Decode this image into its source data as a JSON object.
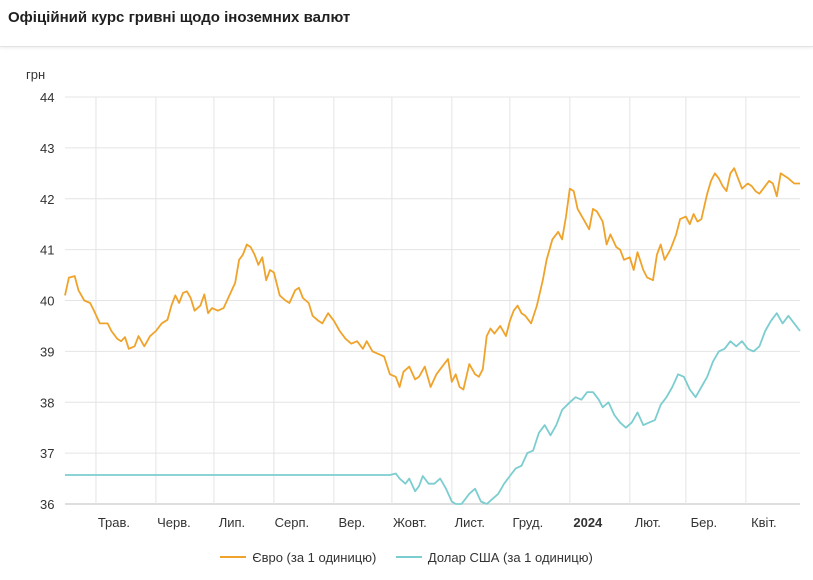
{
  "header": {
    "title": "Офіційний курс гривні щодо іноземних валют"
  },
  "chart_data": {
    "type": "line",
    "ylabel": "грн",
    "ylim": [
      36,
      44
    ],
    "yticks": [
      36,
      37,
      38,
      39,
      40,
      41,
      42,
      43,
      44
    ],
    "xlim": [
      "2023-04-15",
      "2024-04-29"
    ],
    "xticks": [
      {
        "label": "Трав.",
        "date": "2023-05-01",
        "bold": false
      },
      {
        "label": "Черв.",
        "date": "2023-06-01",
        "bold": false
      },
      {
        "label": "Лип.",
        "date": "2023-07-01",
        "bold": false
      },
      {
        "label": "Серп.",
        "date": "2023-08-01",
        "bold": false
      },
      {
        "label": "Вер.",
        "date": "2023-09-01",
        "bold": false
      },
      {
        "label": "Жовт.",
        "date": "2023-10-01",
        "bold": false
      },
      {
        "label": "Лист.",
        "date": "2023-11-01",
        "bold": false
      },
      {
        "label": "Груд.",
        "date": "2023-12-01",
        "bold": false
      },
      {
        "label": "2024",
        "date": "2024-01-01",
        "bold": true
      },
      {
        "label": "Лют.",
        "date": "2024-02-01",
        "bold": false
      },
      {
        "label": "Бер.",
        "date": "2024-03-01",
        "bold": false
      },
      {
        "label": "Квіт.",
        "date": "2024-04-01",
        "bold": false
      }
    ],
    "grid": true,
    "legend_position": "bottom",
    "series": [
      {
        "name": "Євро (за 1 одиницю)",
        "color": "#f0a32a",
        "points": [
          [
            "2023-04-15",
            40.1
          ],
          [
            "2023-04-17",
            40.45
          ],
          [
            "2023-04-20",
            40.48
          ],
          [
            "2023-04-22",
            40.2
          ],
          [
            "2023-04-25",
            40.0
          ],
          [
            "2023-04-28",
            39.95
          ],
          [
            "2023-04-30",
            39.8
          ],
          [
            "2023-05-03",
            39.55
          ],
          [
            "2023-05-07",
            39.55
          ],
          [
            "2023-05-09",
            39.4
          ],
          [
            "2023-05-12",
            39.25
          ],
          [
            "2023-05-14",
            39.2
          ],
          [
            "2023-05-16",
            39.28
          ],
          [
            "2023-05-18",
            39.05
          ],
          [
            "2023-05-21",
            39.1
          ],
          [
            "2023-05-23",
            39.3
          ],
          [
            "2023-05-26",
            39.1
          ],
          [
            "2023-05-29",
            39.3
          ],
          [
            "2023-06-01",
            39.4
          ],
          [
            "2023-06-04",
            39.55
          ],
          [
            "2023-06-07",
            39.62
          ],
          [
            "2023-06-09",
            39.9
          ],
          [
            "2023-06-11",
            40.1
          ],
          [
            "2023-06-13",
            39.95
          ],
          [
            "2023-06-15",
            40.15
          ],
          [
            "2023-06-17",
            40.18
          ],
          [
            "2023-06-19",
            40.05
          ],
          [
            "2023-06-21",
            39.8
          ],
          [
            "2023-06-24",
            39.9
          ],
          [
            "2023-06-26",
            40.12
          ],
          [
            "2023-06-28",
            39.75
          ],
          [
            "2023-06-30",
            39.85
          ],
          [
            "2023-07-03",
            39.8
          ],
          [
            "2023-07-06",
            39.85
          ],
          [
            "2023-07-09",
            40.1
          ],
          [
            "2023-07-12",
            40.35
          ],
          [
            "2023-07-14",
            40.8
          ],
          [
            "2023-07-16",
            40.9
          ],
          [
            "2023-07-18",
            41.1
          ],
          [
            "2023-07-20",
            41.05
          ],
          [
            "2023-07-22",
            40.9
          ],
          [
            "2023-07-24",
            40.7
          ],
          [
            "2023-07-26",
            40.85
          ],
          [
            "2023-07-28",
            40.4
          ],
          [
            "2023-07-30",
            40.6
          ],
          [
            "2023-08-01",
            40.55
          ],
          [
            "2023-08-04",
            40.1
          ],
          [
            "2023-08-07",
            40.0
          ],
          [
            "2023-08-09",
            39.95
          ],
          [
            "2023-08-12",
            40.2
          ],
          [
            "2023-08-14",
            40.25
          ],
          [
            "2023-08-16",
            40.05
          ],
          [
            "2023-08-19",
            39.95
          ],
          [
            "2023-08-21",
            39.7
          ],
          [
            "2023-08-24",
            39.6
          ],
          [
            "2023-08-26",
            39.55
          ],
          [
            "2023-08-29",
            39.75
          ],
          [
            "2023-09-01",
            39.6
          ],
          [
            "2023-09-04",
            39.4
          ],
          [
            "2023-09-07",
            39.25
          ],
          [
            "2023-09-10",
            39.15
          ],
          [
            "2023-09-13",
            39.2
          ],
          [
            "2023-09-16",
            39.05
          ],
          [
            "2023-09-18",
            39.2
          ],
          [
            "2023-09-21",
            39.0
          ],
          [
            "2023-09-24",
            38.95
          ],
          [
            "2023-09-27",
            38.9
          ],
          [
            "2023-09-30",
            38.55
          ],
          [
            "2023-10-03",
            38.5
          ],
          [
            "2023-10-05",
            38.3
          ],
          [
            "2023-10-07",
            38.6
          ],
          [
            "2023-10-10",
            38.7
          ],
          [
            "2023-10-13",
            38.45
          ],
          [
            "2023-10-15",
            38.5
          ],
          [
            "2023-10-18",
            38.7
          ],
          [
            "2023-10-21",
            38.3
          ],
          [
            "2023-10-24",
            38.55
          ],
          [
            "2023-10-27",
            38.7
          ],
          [
            "2023-10-30",
            38.85
          ],
          [
            "2023-11-01",
            38.4
          ],
          [
            "2023-11-03",
            38.55
          ],
          [
            "2023-11-05",
            38.3
          ],
          [
            "2023-11-07",
            38.25
          ],
          [
            "2023-11-10",
            38.75
          ],
          [
            "2023-11-13",
            38.55
          ],
          [
            "2023-11-15",
            38.5
          ],
          [
            "2023-11-17",
            38.65
          ],
          [
            "2023-11-19",
            39.3
          ],
          [
            "2023-11-21",
            39.45
          ],
          [
            "2023-11-23",
            39.35
          ],
          [
            "2023-11-26",
            39.5
          ],
          [
            "2023-11-29",
            39.3
          ],
          [
            "2023-12-01",
            39.6
          ],
          [
            "2023-12-03",
            39.8
          ],
          [
            "2023-12-05",
            39.9
          ],
          [
            "2023-12-07",
            39.75
          ],
          [
            "2023-12-09",
            39.7
          ],
          [
            "2023-12-12",
            39.55
          ],
          [
            "2023-12-15",
            39.9
          ],
          [
            "2023-12-18",
            40.4
          ],
          [
            "2023-12-20",
            40.8
          ],
          [
            "2023-12-23",
            41.2
          ],
          [
            "2023-12-26",
            41.35
          ],
          [
            "2023-12-28",
            41.2
          ],
          [
            "2023-12-30",
            41.65
          ],
          [
            "2024-01-01",
            42.2
          ],
          [
            "2024-01-03",
            42.15
          ],
          [
            "2024-01-05",
            41.8
          ],
          [
            "2024-01-08",
            41.6
          ],
          [
            "2024-01-11",
            41.4
          ],
          [
            "2024-01-13",
            41.8
          ],
          [
            "2024-01-15",
            41.75
          ],
          [
            "2024-01-18",
            41.55
          ],
          [
            "2024-01-20",
            41.1
          ],
          [
            "2024-01-22",
            41.3
          ],
          [
            "2024-01-25",
            41.05
          ],
          [
            "2024-01-27",
            41.0
          ],
          [
            "2024-01-29",
            40.8
          ],
          [
            "2024-02-01",
            40.85
          ],
          [
            "2024-02-03",
            40.6
          ],
          [
            "2024-02-05",
            40.95
          ],
          [
            "2024-02-08",
            40.6
          ],
          [
            "2024-02-10",
            40.45
          ],
          [
            "2024-02-13",
            40.4
          ],
          [
            "2024-02-15",
            40.9
          ],
          [
            "2024-02-17",
            41.1
          ],
          [
            "2024-02-19",
            40.8
          ],
          [
            "2024-02-22",
            41.0
          ],
          [
            "2024-02-25",
            41.3
          ],
          [
            "2024-02-27",
            41.6
          ],
          [
            "2024-03-01",
            41.65
          ],
          [
            "2024-03-03",
            41.5
          ],
          [
            "2024-03-05",
            41.7
          ],
          [
            "2024-03-07",
            41.55
          ],
          [
            "2024-03-09",
            41.6
          ],
          [
            "2024-03-12",
            42.1
          ],
          [
            "2024-03-14",
            42.35
          ],
          [
            "2024-03-16",
            42.5
          ],
          [
            "2024-03-18",
            42.4
          ],
          [
            "2024-03-20",
            42.25
          ],
          [
            "2024-03-22",
            42.15
          ],
          [
            "2024-03-24",
            42.5
          ],
          [
            "2024-03-26",
            42.6
          ],
          [
            "2024-03-28",
            42.4
          ],
          [
            "2024-03-30",
            42.2
          ],
          [
            "2024-04-02",
            42.3
          ],
          [
            "2024-04-04",
            42.25
          ],
          [
            "2024-04-06",
            42.15
          ],
          [
            "2024-04-08",
            42.1
          ],
          [
            "2024-04-10",
            42.2
          ],
          [
            "2024-04-13",
            42.35
          ],
          [
            "2024-04-15",
            42.3
          ],
          [
            "2024-04-17",
            42.05
          ],
          [
            "2024-04-19",
            42.5
          ],
          [
            "2024-04-21",
            42.45
          ],
          [
            "2024-04-23",
            42.4
          ],
          [
            "2024-04-26",
            42.3
          ],
          [
            "2024-04-29",
            42.3
          ]
        ]
      },
      {
        "name": "Долар США (за 1 одиницю)",
        "color": "#7ccdd0",
        "points": [
          [
            "2023-04-15",
            36.57
          ],
          [
            "2023-06-01",
            36.57
          ],
          [
            "2023-08-01",
            36.57
          ],
          [
            "2023-09-30",
            36.57
          ],
          [
            "2023-10-03",
            36.6
          ],
          [
            "2023-10-05",
            36.5
          ],
          [
            "2023-10-08",
            36.4
          ],
          [
            "2023-10-10",
            36.5
          ],
          [
            "2023-10-13",
            36.25
          ],
          [
            "2023-10-15",
            36.35
          ],
          [
            "2023-10-17",
            36.55
          ],
          [
            "2023-10-20",
            36.4
          ],
          [
            "2023-10-23",
            36.4
          ],
          [
            "2023-10-26",
            36.5
          ],
          [
            "2023-10-29",
            36.3
          ],
          [
            "2023-11-01",
            36.05
          ],
          [
            "2023-11-03",
            36.0
          ],
          [
            "2023-11-06",
            36.0
          ],
          [
            "2023-11-08",
            36.1
          ],
          [
            "2023-11-10",
            36.2
          ],
          [
            "2023-11-13",
            36.3
          ],
          [
            "2023-11-16",
            36.05
          ],
          [
            "2023-11-19",
            36.0
          ],
          [
            "2023-11-22",
            36.1
          ],
          [
            "2023-11-25",
            36.2
          ],
          [
            "2023-11-28",
            36.4
          ],
          [
            "2023-12-01",
            36.55
          ],
          [
            "2023-12-04",
            36.7
          ],
          [
            "2023-12-07",
            36.75
          ],
          [
            "2023-12-10",
            37.0
          ],
          [
            "2023-12-13",
            37.05
          ],
          [
            "2023-12-16",
            37.4
          ],
          [
            "2023-12-19",
            37.55
          ],
          [
            "2023-12-22",
            37.35
          ],
          [
            "2023-12-25",
            37.55
          ],
          [
            "2023-12-28",
            37.85
          ],
          [
            "2024-01-01",
            38.0
          ],
          [
            "2024-01-04",
            38.1
          ],
          [
            "2024-01-07",
            38.05
          ],
          [
            "2024-01-10",
            38.2
          ],
          [
            "2024-01-13",
            38.2
          ],
          [
            "2024-01-16",
            38.05
          ],
          [
            "2024-01-18",
            37.9
          ],
          [
            "2024-01-21",
            38.0
          ],
          [
            "2024-01-24",
            37.75
          ],
          [
            "2024-01-27",
            37.6
          ],
          [
            "2024-01-30",
            37.5
          ],
          [
            "2024-02-02",
            37.6
          ],
          [
            "2024-02-05",
            37.8
          ],
          [
            "2024-02-08",
            37.55
          ],
          [
            "2024-02-11",
            37.6
          ],
          [
            "2024-02-14",
            37.65
          ],
          [
            "2024-02-17",
            37.95
          ],
          [
            "2024-02-20",
            38.1
          ],
          [
            "2024-02-23",
            38.3
          ],
          [
            "2024-02-26",
            38.55
          ],
          [
            "2024-02-29",
            38.5
          ],
          [
            "2024-03-03",
            38.25
          ],
          [
            "2024-03-06",
            38.1
          ],
          [
            "2024-03-09",
            38.3
          ],
          [
            "2024-03-12",
            38.5
          ],
          [
            "2024-03-15",
            38.8
          ],
          [
            "2024-03-18",
            39.0
          ],
          [
            "2024-03-21",
            39.05
          ],
          [
            "2024-03-24",
            39.2
          ],
          [
            "2024-03-27",
            39.1
          ],
          [
            "2024-03-30",
            39.2
          ],
          [
            "2024-04-02",
            39.05
          ],
          [
            "2024-04-05",
            39.0
          ],
          [
            "2024-04-08",
            39.1
          ],
          [
            "2024-04-11",
            39.4
          ],
          [
            "2024-04-14",
            39.6
          ],
          [
            "2024-04-17",
            39.75
          ],
          [
            "2024-04-20",
            39.55
          ],
          [
            "2024-04-23",
            39.7
          ],
          [
            "2024-04-26",
            39.55
          ],
          [
            "2024-04-29",
            39.4
          ]
        ]
      }
    ]
  }
}
